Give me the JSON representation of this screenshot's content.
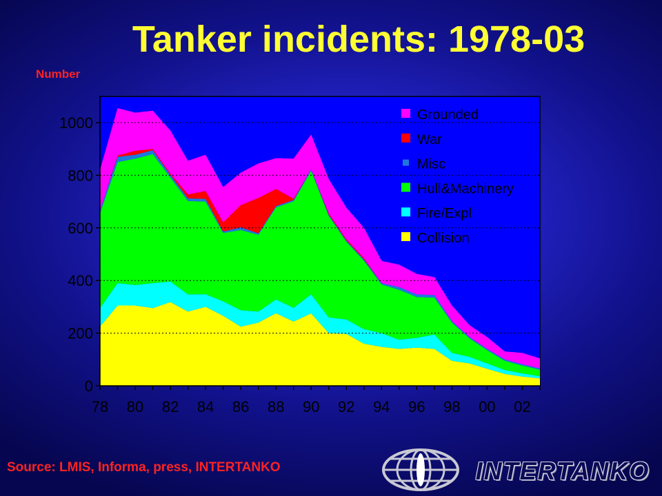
{
  "title": "Tanker incidents: 1978-03",
  "ylabel": "Number",
  "source": "Source: LMIS, Informa, press, INTERTANKO",
  "logo_text": "INTERTANKO",
  "chart_data": {
    "type": "area",
    "stacked": true,
    "title": "Tanker incidents: 1978-03",
    "ylabel": "Number",
    "xlabel": "",
    "x": [
      1978,
      1979,
      1980,
      1981,
      1982,
      1983,
      1984,
      1985,
      1986,
      1987,
      1988,
      1989,
      1990,
      1991,
      1992,
      1993,
      1994,
      1995,
      1996,
      1997,
      1998,
      1999,
      2000,
      2001,
      2002,
      2003
    ],
    "xtick_values": [
      1978,
      1980,
      1982,
      1984,
      1986,
      1988,
      1990,
      1992,
      1994,
      1996,
      1998,
      2000,
      2002
    ],
    "xtick_labels": [
      "78",
      "80",
      "82",
      "84",
      "86",
      "88",
      "90",
      "92",
      "94",
      "96",
      "98",
      "00",
      "02"
    ],
    "yticks": [
      0,
      200,
      400,
      600,
      800,
      1000
    ],
    "ylim": [
      0,
      1000
    ],
    "grid": true,
    "legend_position": "top-right",
    "series": [
      {
        "name": "Collision",
        "color": "#ffff00",
        "values": [
          225,
          305,
          305,
          295,
          318,
          282,
          300,
          266,
          225,
          240,
          276,
          244,
          275,
          200,
          197,
          160,
          148,
          140,
          145,
          140,
          95,
          85,
          65,
          45,
          35,
          28
        ]
      },
      {
        "name": "Fire/Expl",
        "color": "#00ffff",
        "values": [
          70,
          85,
          78,
          95,
          78,
          65,
          48,
          55,
          62,
          42,
          52,
          52,
          72,
          60,
          55,
          55,
          52,
          35,
          37,
          55,
          30,
          25,
          20,
          15,
          12,
          8
        ]
      },
      {
        "name": "Hull&Machinery",
        "color": "#00ff00",
        "values": [
          360,
          460,
          480,
          490,
          395,
          355,
          352,
          260,
          305,
          292,
          350,
          405,
          470,
          385,
          295,
          260,
          185,
          190,
          155,
          140,
          115,
          70,
          50,
          35,
          30,
          25
        ]
      },
      {
        "name": "Misc",
        "color": "#1e78dc",
        "values": [
          10,
          20,
          15,
          15,
          10,
          10,
          10,
          5,
          10,
          5,
          5,
          5,
          5,
          5,
          5,
          5,
          5,
          10,
          10,
          10,
          5,
          5,
          5,
          5,
          5,
          5
        ]
      },
      {
        "name": "War",
        "color": "#ff0000",
        "values": [
          0,
          5,
          15,
          5,
          5,
          15,
          30,
          35,
          85,
          135,
          65,
          5,
          0,
          5,
          5,
          5,
          0,
          0,
          0,
          0,
          0,
          0,
          0,
          0,
          0,
          0
        ]
      },
      {
        "name": "Grounded",
        "color": "#ff00ff",
        "values": [
          155,
          180,
          145,
          145,
          164,
          128,
          138,
          134,
          123,
          131,
          117,
          152,
          133,
          130,
          120,
          115,
          85,
          85,
          78,
          68,
          60,
          45,
          45,
          30,
          43,
          38
        ]
      }
    ]
  }
}
